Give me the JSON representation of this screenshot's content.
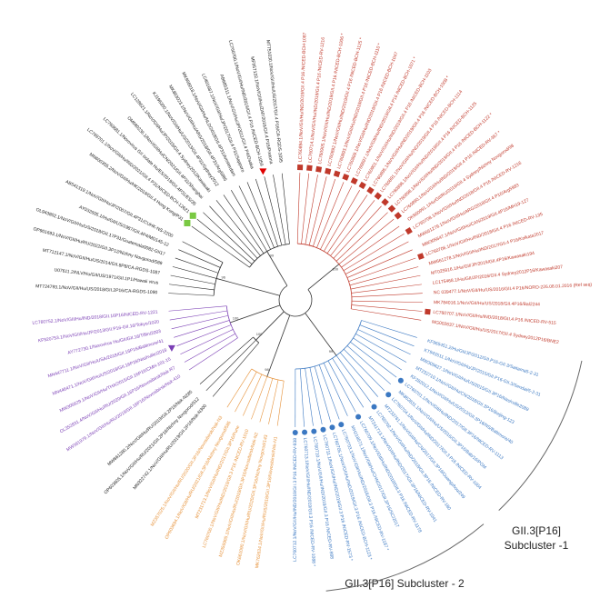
{
  "tree": {
    "groups": [
      {
        "color": "#c0392b",
        "support": 100,
        "leaves": [
          {
            "label": "LC760894.1/NoV/GII/Hu/IND/2019/GII.4 P16 /NICED-BCH-1087",
            "marker": "square"
          },
          {
            "label": "LC760714.1/NoV/GII/Hu/IND/2019/GII.4 P16 /NICED-RV-1216",
            "marker": "square"
          },
          {
            "label": "LC760905.1/NoV/GII/Hu/IND/2019/GII.4 P16 /NICED-BCH-1006 *",
            "marker": "square"
          },
          {
            "label": "LC760892.1/NoV/GII/Hu/IND/2019/GII.4 P16 /NICED-BCH-1125 *",
            "marker": "square"
          },
          {
            "label": "LC760893.1/NoV/GII/Hu/IND/2019/GII.4 P16 /NICED-BCH-1110 *",
            "marker": "square"
          },
          {
            "label": "LC760899.1/NoV/GII/Hu/IND/2019/GII.4 P16 /NICED-BCH-1047",
            "marker": "square"
          },
          {
            "label": "LC760897.1/NoV/GII/Hu/IND/2019/GII.4 P16 /NICED-BCH-1071 *",
            "marker": "square"
          },
          {
            "label": "LC760901.1/NoV/GII/Hu/IND/2019/GII.4 P16 /NICED-BCH-1103",
            "marker": "square"
          },
          {
            "label": "LC760895.1/NoV/GII/Hu/IND/2019/GII.4 P16 /NICED-BCH-1008 *",
            "marker": "square"
          },
          {
            "label": "LC760891.1/NoV/GII/Hu/IND/2019/GII.4 P16 /NICED-BCH-1114",
            "marker": "square"
          },
          {
            "label": "LC760896.1/NoV/GII/Hu/IND/2019/GII.4 P16 /NICED-BCH-1125",
            "marker": "square"
          },
          {
            "label": "LC760898.1/NoV/GII/Hu/IND/2019/GII.4 P16 /NICED-BCH-1122 *",
            "marker": "square"
          },
          {
            "label": "LC760890.1/NoV/GII/Hu/IND/2019/GII.4 P16 /NICED-RV-367 *",
            "marker": "square"
          },
          {
            "label": "OK660991.1/Hu/GII/RU/2019/GII.4 Sydney/Nizhny Novgorod/98"
          },
          {
            "label": "LC760708.1/NoV/GII/Hu/IND/2018/GII.4 P16 /NICED-RV-1216",
            "marker": "square"
          },
          {
            "label": "MW661279.1/NoV/GII/Hu/ARG/2018/GII.4 P16/Arg5983"
          },
          {
            "label": "MW305647.1/NoV/GII/Hu/CAN/2019/GII.4P16/MH19-127"
          },
          {
            "label": "LC760706.1/NoV/GII/Hu/IND/2018/GII.4 P16 /NICED-RV-135",
            "marker": "square"
          },
          {
            "label": "MW661278.1/NoV/GII/Hu/IND/2017/GII.4 P16/Kolkata2017"
          },
          {
            "label": "MT025916.1/Hu/GII/JP/2019/GII.4P16/Kawasaki194"
          },
          {
            "label": "LC175468.1/Hu/GII/JP/2016/GII.4 Sydney2012P16/Kawasaki207"
          },
          {
            "label": "NC 039477.1/NoV/GII/Hu/US/2016/GII.4 P16/NORO-226.08.01.2016 (Ref seq)"
          },
          {
            "label": "MK784016.1/NoV/GII/Hu/US/2018/GII.4P16/Bal2244"
          },
          {
            "label": "LC760707.1/NoV/GII/Hu/IND/2018/GII.4 P16 /NICED-RV-515",
            "marker": "square"
          },
          {
            "label": "MG002637.1/NoV/GII/Hu/US/2017/GII.4 Sydney2012P16/BNE2"
          }
        ]
      },
      {
        "color": "#3b78c2",
        "support": 99,
        "leaves": [
          {
            "label": "KF965451.2/Hu/GII/JP/2012/GII.P16-GII.3/Saitama5-2-31"
          },
          {
            "label": "KT943511.1/NoV/GII/Hu/JP/2015/GII.P16-GII.3/Sendai/5-2-31"
          },
          {
            "label": "MW305627.1/NoV/GII/Hu/US/2015/GII.3P16/Nashville2089"
          },
          {
            "label": "MT232710.1/NoV/GII/Hu/CN/2018/GII.3P16/Beijing-123"
          },
          {
            "label": "KF282012.1/NoV/GII/Hu/US/2012/GII.3P16/NS/Baltimore/40"
          },
          {
            "label": "LC760701.1/NoV/GII/Hu/IND/2017/GII.3P16/NICED-RV-1113",
            "marker": "dot"
          },
          {
            "label": "MK862831.1/NoV/GII/Hu/US/2016/GII.3P16/Bab/16/PGM"
          },
          {
            "label": "LC760704.1/NoV/GII/Hu/IND/2017/GII.3 P16 /NICED-RV-1004",
            "marker": "dot"
          },
          {
            "label": "MT233761.1/NoV/GII/Hu/CN/2017/GII.3P16/Guangzhou/249"
          },
          {
            "label": "LC760702.1/NoV/GII/Hu/IND/2018/GII.3P16 /NICED-RV-180",
            "marker": "dot"
          },
          {
            "label": "MT241713.1/NoV/GII/Hu/IND/2017/GII.3P16/NICED-RV-1041"
          },
          {
            "label": "LC760709.1/NoV/GII/Hu/IND/2018/GII.3 P16 /NICED-RV-1178",
            "marker": "dot"
          },
          {
            "label": "MH218571.1/NoV/GII/Hu/CHN/2017/GII.3P16/SC/2017"
          },
          {
            "label": "LC760703.1/NoV/GII/Hu/IND/2018/GII.3 P16 /NICED-RV-1187 *",
            "marker": "dot"
          },
          {
            "label": "LC760705.1/NoV/GII/Hu/IND/2019/GII.3 P16 /NICED-BCH-1123 *",
            "marker": "dot"
          },
          {
            "label": "LC760711.1/NoV/GII/Hu/IND/2019/GII.3 P16 /NICED-RV-1573 *",
            "marker": "dot"
          },
          {
            "label": "LC760710.1/NoV/GII/Hu/IND/2019/GII.3 P16 /NICED-RV-988",
            "marker": "dot"
          },
          {
            "label": "LC760713.1/NoV/GII/Hu/IND/2019/GII.3 P16 /NICED-RV-1088 *",
            "marker": "dot"
          },
          {
            "label": "LC760712.1/NoV/GII/Hu/IND/2019/GII.3 P16 /NICED-RV-938",
            "marker": "dot"
          }
        ]
      },
      {
        "color": "#e69138",
        "support": 98,
        "leaves": [
          {
            "label": "MK762634.1/NoV/GII/Hu/RUS/2018/GII.3P16/Novosibirsk/Nsk-N1"
          },
          {
            "label": "OK661090.1/NoV/GII/Hu/RU/2020/GII.3P16/Nizhny Novgorod/143"
          },
          {
            "label": "MZ356905.1/NoV/GII/Hu/RU/2019/GII.3P16/Novosibirsk/Nsk-N2"
          },
          {
            "label": "LC760700.1/NoV/GII/Hu/IND/2019/GII.3 P16 /NICED-RV-1010"
          },
          {
            "label": "MT231713.1/NoV/GII/Hu/IND/2017/GII.3P16/Pune"
          },
          {
            "label": "OP603694.1/NoV/GII/Hu/RU/2021/GII.3P16/Nizhny Novgorod/585"
          },
          {
            "label": "MZ357025.1/NoV/GII/Hu/RU/2020/GII.3P16/Novosibirsk/Nsk-N3"
          }
        ]
      },
      {
        "color": "#222222",
        "support": 100,
        "leaves": [
          {
            "label": "MN922742.1/NoV/GII/Hu/RU/2019/GII.2P16/Nsk-N300"
          },
          {
            "label": "OP603605.1/NoV/GII/Hu/RU/2021/GII.2P16/Nizhny Novgorod/512"
          },
          {
            "label": "MW661280.2/NoV/GII/Hu/RU/2019/GII.2P16/Nsk-N285"
          }
        ]
      },
      {
        "color": "#7b3fb5",
        "support": 100,
        "leaves": [
          {
            "label": "MW391979.1/NoV/GII/Hu/RU/2019/GII.16P16/Novosibirsk/Nsk-410"
          },
          {
            "label": "OL352831.4/NoV/GII/Hu/RU/2020/GII.16P16/Novosibirsk/Nsk-R7"
          },
          {
            "label": "MW305629.1/NoV/GII/Hu/THA/2015/GII.16P16/CMH-101-15"
          },
          {
            "label": "MN446471.1/NoV/GII/Hu/US/2018/GII.16P16/Nashville/2018",
            "marker": "triangle"
          },
          {
            "label": "MN447711.1/NoV/GII/Hu/USA/2018/GII.16P16/Baltimore/41"
          },
          {
            "label": "AY772730.1/Norovirus Hu/GII/GII.16/Tiffin/2003"
          },
          {
            "label": "KF920753.1/NoV/GII/Hu/JP/2013/GII.P16-GII.16/Tokyo/1020"
          },
          {
            "label": "LC760752.1/NoV/GII/Hu/IND/2018/GII.16P16/NICED-RV-1221"
          }
        ]
      },
      {
        "color": "#222222",
        "support": 96,
        "leaves": [
          {
            "label": "MT724793.1/NoV/GII/Hu/US/2018/GII.2P16/CA-RGDS-1090"
          },
          {
            "label": "U07611.2/NLV/Hu/GII/US/1971/GII.1P1/Hawaii virus"
          },
          {
            "label": "MT712147.1/NoV/GII/Hu/US/2014/GII.8P8/CA-RGDS-1087"
          },
          {
            "label": "OP901693.1/NoV/GII/Hu/RU/2022/GII.3P12/Nizhny Novgorod/589"
          },
          {
            "label": "OL943802.1/NoV/GII/Hu/US/2018/GII.17P31/Guatemala0082-GII17"
          },
          {
            "label": "AY032605.1/Hu/GII/US/1987/GII.4P4/MD145-12"
          },
          {
            "label": "AB541319.1/NoV/GII/Hu/JP/2007/GII.4P31/CUHK-NS-2200"
          }
        ]
      },
      {
        "color": "#222222",
        "support": 99,
        "leaves": [
          {
            "label": "MN600355.2/NoV/GII/Hu/HK/2019/GII.4 Hong Kong/P31",
            "marker": "green-square"
          },
          {
            "label": "LC769701.1/NoV/GII/Hu/IND/2021/GII.4 P31/NICED-BCH-12621",
            "marker": "green-square"
          },
          {
            "label": "LC769681.1/Norovirus GII isolate Hu/ES/2019/GII.4P31/ES/35"
          },
          {
            "label": "OM080236.1/NoV/GII/Hu/CN/2021/GII.4P31/Shanghai"
          },
          {
            "label": "LC128621.1/NoV/GII/Hu/JP/2015/GII.4 Sydney2012/Kawasaki"
          },
          {
            "label": "KJ196300.1/NoV/GII/Hu/US/2013/GII.4P31/Sydney2012"
          },
          {
            "label": "MK863023.1/NoV/GII/Hu/ARG/2018/GII.4P31/Arg5985"
          },
          {
            "label": "MK956018.1/NoV/GII/Hu/NLD/2018/GII.4P31/Amsterdam"
          },
          {
            "label": "LC401687.1/NoV/GII/Hu/JP/2017/GII.4 P31/Sapporo"
          },
          {
            "label": "AB685311.1/NoV/GII/Hu/JP/2011/GII.4 P4/Osaka"
          },
          {
            "label": "LC760700.1/NoV/GII/Hu/IND/2019/GII.4 P16 /NICED-BCH-1059",
            "marker": "triangle-red"
          },
          {
            "label": "MF957132.1/NoV/GII/Hu/ZAF/2016/GII.4 P16/Pretoria"
          },
          {
            "label": "MT751030.1/NoV/GII/Hu/US/2017/GII.4 P16/CA-RGDS-1095"
          }
        ]
      }
    ]
  },
  "annotations": {
    "subcluster_1": {
      "line1": "GII.3[P16]",
      "line2": "Subcluster -1"
    },
    "subcluster_2": "GII.3[P16] Subcluster - 2"
  }
}
